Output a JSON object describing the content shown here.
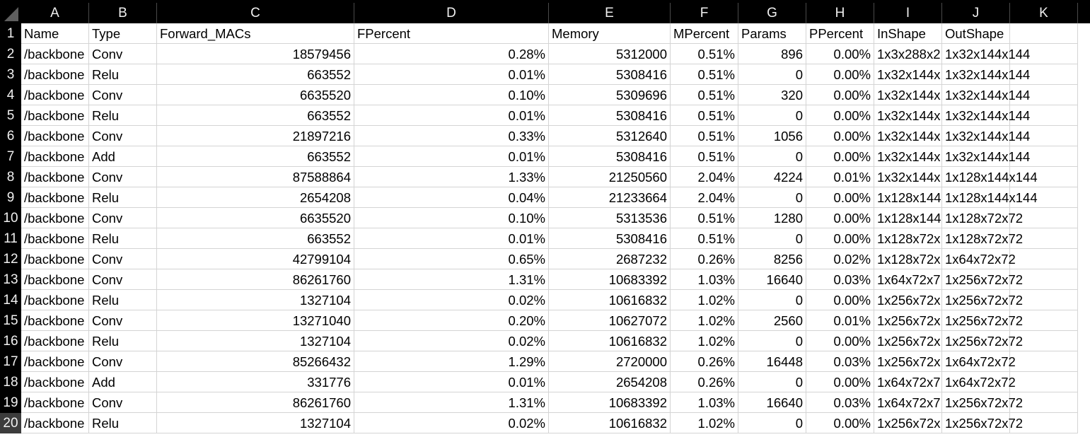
{
  "columns": [
    "A",
    "B",
    "C",
    "D",
    "E",
    "F",
    "G",
    "H",
    "I",
    "J",
    "K"
  ],
  "header_row": [
    "Name",
    "Type",
    "Forward_MACs",
    "FPercent",
    "Memory",
    "MPercent",
    "Params",
    "PPercent",
    "InShape",
    "OutShape",
    ""
  ],
  "rows": [
    [
      "/backbone",
      "Conv",
      "18579456",
      "0.28%",
      "5312000",
      "0.51%",
      "896",
      "0.00%",
      "1x3x288x2",
      "1x32x144x144",
      ""
    ],
    [
      "/backbone",
      "Relu",
      "663552",
      "0.01%",
      "5308416",
      "0.51%",
      "0",
      "0.00%",
      "1x32x144x",
      "1x32x144x144",
      ""
    ],
    [
      "/backbone",
      "Conv",
      "6635520",
      "0.10%",
      "5309696",
      "0.51%",
      "320",
      "0.00%",
      "1x32x144x",
      "1x32x144x144",
      ""
    ],
    [
      "/backbone",
      "Relu",
      "663552",
      "0.01%",
      "5308416",
      "0.51%",
      "0",
      "0.00%",
      "1x32x144x",
      "1x32x144x144",
      ""
    ],
    [
      "/backbone",
      "Conv",
      "21897216",
      "0.33%",
      "5312640",
      "0.51%",
      "1056",
      "0.00%",
      "1x32x144x",
      "1x32x144x144",
      ""
    ],
    [
      "/backbone",
      "Add",
      "663552",
      "0.01%",
      "5308416",
      "0.51%",
      "0",
      "0.00%",
      "1x32x144x",
      "1x32x144x144",
      ""
    ],
    [
      "/backbone",
      "Conv",
      "87588864",
      "1.33%",
      "21250560",
      "2.04%",
      "4224",
      "0.01%",
      "1x32x144x",
      "1x128x144x144",
      ""
    ],
    [
      "/backbone",
      "Relu",
      "2654208",
      "0.04%",
      "21233664",
      "2.04%",
      "0",
      "0.00%",
      "1x128x144",
      "1x128x144x144",
      ""
    ],
    [
      "/backbone",
      "Conv",
      "6635520",
      "0.10%",
      "5313536",
      "0.51%",
      "1280",
      "0.00%",
      "1x128x144",
      "1x128x72x72",
      ""
    ],
    [
      "/backbone",
      "Relu",
      "663552",
      "0.01%",
      "5308416",
      "0.51%",
      "0",
      "0.00%",
      "1x128x72x",
      "1x128x72x72",
      ""
    ],
    [
      "/backbone",
      "Conv",
      "42799104",
      "0.65%",
      "2687232",
      "0.26%",
      "8256",
      "0.02%",
      "1x128x72x",
      "1x64x72x72",
      ""
    ],
    [
      "/backbone",
      "Conv",
      "86261760",
      "1.31%",
      "10683392",
      "1.03%",
      "16640",
      "0.03%",
      "1x64x72x7",
      "1x256x72x72",
      ""
    ],
    [
      "/backbone",
      "Relu",
      "1327104",
      "0.02%",
      "10616832",
      "1.02%",
      "0",
      "0.00%",
      "1x256x72x",
      "1x256x72x72",
      ""
    ],
    [
      "/backbone",
      "Conv",
      "13271040",
      "0.20%",
      "10627072",
      "1.02%",
      "2560",
      "0.01%",
      "1x256x72x",
      "1x256x72x72",
      ""
    ],
    [
      "/backbone",
      "Relu",
      "1327104",
      "0.02%",
      "10616832",
      "1.02%",
      "0",
      "0.00%",
      "1x256x72x",
      "1x256x72x72",
      ""
    ],
    [
      "/backbone",
      "Conv",
      "85266432",
      "1.29%",
      "2720000",
      "0.26%",
      "16448",
      "0.03%",
      "1x256x72x",
      "1x64x72x72",
      ""
    ],
    [
      "/backbone",
      "Add",
      "331776",
      "0.01%",
      "2654208",
      "0.26%",
      "0",
      "0.00%",
      "1x64x72x7",
      "1x64x72x72",
      ""
    ],
    [
      "/backbone",
      "Conv",
      "86261760",
      "1.31%",
      "10683392",
      "1.03%",
      "16640",
      "0.03%",
      "1x64x72x7",
      "1x256x72x72",
      ""
    ],
    [
      "/backbone",
      "Relu",
      "1327104",
      "0.02%",
      "10616832",
      "1.02%",
      "0",
      "0.00%",
      "1x256x72x",
      "1x256x72x72",
      ""
    ]
  ],
  "row_numbers": [
    "1",
    "2",
    "3",
    "4",
    "5",
    "6",
    "7",
    "8",
    "9",
    "10",
    "11",
    "12",
    "13",
    "14",
    "15",
    "16",
    "17",
    "18",
    "19",
    "20"
  ],
  "active_row": "20"
}
